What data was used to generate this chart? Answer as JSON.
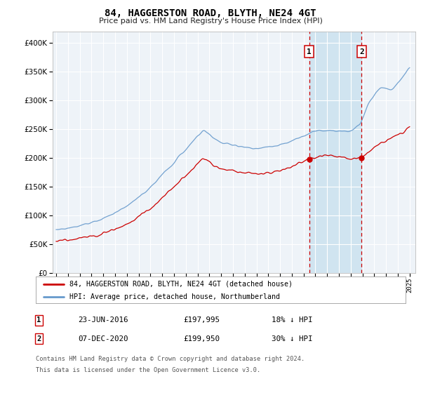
{
  "title": "84, HAGGERSTON ROAD, BLYTH, NE24 4GT",
  "subtitle": "Price paid vs. HM Land Registry's House Price Index (HPI)",
  "legend_line1": "84, HAGGERSTON ROAD, BLYTH, NE24 4GT (detached house)",
  "legend_line2": "HPI: Average price, detached house, Northumberland",
  "footnote1": "Contains HM Land Registry data © Crown copyright and database right 2024.",
  "footnote2": "This data is licensed under the Open Government Licence v3.0.",
  "marker1_label": "1",
  "marker1_date": "23-JUN-2016",
  "marker1_price": "£197,995",
  "marker1_hpi": "18% ↓ HPI",
  "marker1_x": 2016.47,
  "marker1_y": 197995,
  "marker2_label": "2",
  "marker2_date": "07-DEC-2020",
  "marker2_price": "£199,950",
  "marker2_hpi": "30% ↓ HPI",
  "marker2_x": 2020.92,
  "marker2_y": 199950,
  "property_color": "#cc0000",
  "hpi_color": "#6699cc",
  "marker_color": "#cc0000",
  "shade_color": "#d0e4f0",
  "background_plot": "#eef3f8",
  "grid_color": "#ffffff",
  "ylim": [
    0,
    420000
  ],
  "xlim": [
    1994.7,
    2025.5
  ],
  "yticks": [
    0,
    50000,
    100000,
    150000,
    200000,
    250000,
    300000,
    350000,
    400000
  ],
  "xtick_years": [
    1995,
    1996,
    1997,
    1998,
    1999,
    2000,
    2001,
    2002,
    2003,
    2004,
    2005,
    2006,
    2007,
    2008,
    2009,
    2010,
    2011,
    2012,
    2013,
    2014,
    2015,
    2016,
    2017,
    2018,
    2019,
    2020,
    2021,
    2022,
    2023,
    2024,
    2025
  ]
}
